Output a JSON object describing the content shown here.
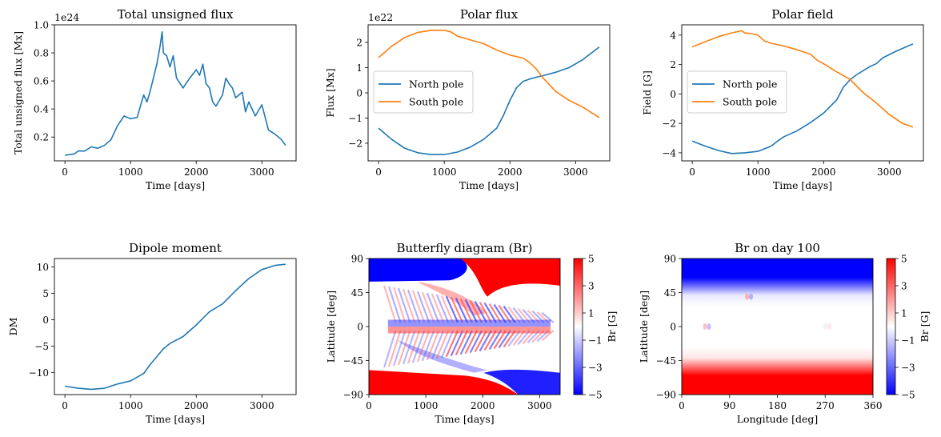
{
  "chart_data": [
    {
      "id": "flux",
      "type": "line",
      "title": "Total unsigned flux",
      "xlabel": "Time [days]",
      "ylabel": "Total unsigned flux [Mx]",
      "offset_label": "1e24",
      "xlim": [
        -160,
        3520
      ],
      "ylim": [
        0.03,
        1.0
      ],
      "xticks": [
        0,
        1000,
        2000,
        3000
      ],
      "yticks": [
        0.2,
        0.4,
        0.6,
        0.8,
        1.0
      ],
      "xticklabels": [
        "0",
        "1000",
        "2000",
        "3000"
      ],
      "yticklabels": [
        "0.2",
        "0.4",
        "0.6",
        "0.8",
        "1.0"
      ],
      "series": [
        {
          "name": "Total unsigned flux",
          "color": "#1f77b4",
          "x": [
            0,
            150,
            200,
            300,
            400,
            500,
            600,
            700,
            800,
            900,
            1000,
            1100,
            1200,
            1250,
            1300,
            1400,
            1450,
            1480,
            1500,
            1550,
            1600,
            1650,
            1700,
            1800,
            1900,
            2000,
            2050,
            2100,
            2150,
            2200,
            2250,
            2300,
            2400,
            2450,
            2500,
            2550,
            2600,
            2700,
            2750,
            2800,
            2900,
            3000,
            3100,
            3200,
            3300,
            3360
          ],
          "values": [
            0.07,
            0.08,
            0.1,
            0.1,
            0.13,
            0.12,
            0.14,
            0.18,
            0.28,
            0.35,
            0.33,
            0.34,
            0.5,
            0.45,
            0.53,
            0.72,
            0.85,
            0.95,
            0.8,
            0.78,
            0.7,
            0.78,
            0.62,
            0.55,
            0.62,
            0.68,
            0.64,
            0.72,
            0.58,
            0.55,
            0.45,
            0.42,
            0.5,
            0.62,
            0.58,
            0.55,
            0.48,
            0.52,
            0.38,
            0.45,
            0.35,
            0.43,
            0.25,
            0.22,
            0.18,
            0.14
          ]
        }
      ]
    },
    {
      "id": "polarflux",
      "type": "line",
      "title": "Polar flux",
      "xlabel": "Time [days]",
      "ylabel": "Flux [Mx]",
      "offset_label": "1e22",
      "xlim": [
        -160,
        3520
      ],
      "ylim": [
        -2.7,
        2.7
      ],
      "xticks": [
        0,
        1000,
        2000,
        3000
      ],
      "yticks": [
        -2,
        -1,
        0,
        1,
        2
      ],
      "xticklabels": [
        "0",
        "1000",
        "2000",
        "3000"
      ],
      "yticklabels": [
        "−2",
        "−1",
        "0",
        "1",
        "2"
      ],
      "legend": "center-left",
      "series": [
        {
          "name": "North pole",
          "color": "#1f77b4",
          "x": [
            0,
            200,
            400,
            600,
            800,
            1000,
            1200,
            1400,
            1600,
            1800,
            1900,
            2000,
            2100,
            2200,
            2300,
            2400,
            2500,
            2700,
            2900,
            3100,
            3360
          ],
          "values": [
            -1.4,
            -1.85,
            -2.2,
            -2.38,
            -2.45,
            -2.45,
            -2.35,
            -2.15,
            -1.85,
            -1.4,
            -0.9,
            -0.3,
            0.2,
            0.45,
            0.55,
            0.62,
            0.68,
            0.82,
            1.0,
            1.3,
            1.82
          ]
        },
        {
          "name": "South pole",
          "color": "#ff7f0e",
          "x": [
            0,
            200,
            400,
            600,
            800,
            1000,
            1100,
            1200,
            1400,
            1600,
            1800,
            2000,
            2200,
            2300,
            2400,
            2500,
            2700,
            2900,
            3100,
            3360
          ],
          "values": [
            1.4,
            1.85,
            2.2,
            2.4,
            2.48,
            2.48,
            2.42,
            2.25,
            2.1,
            1.95,
            1.7,
            1.5,
            1.38,
            1.2,
            0.95,
            0.6,
            0.05,
            -0.3,
            -0.55,
            -0.98
          ]
        }
      ]
    },
    {
      "id": "polarfield",
      "type": "line",
      "title": "Polar field",
      "xlabel": "Time [days]",
      "ylabel": "Field [G]",
      "xlim": [
        -160,
        3520
      ],
      "ylim": [
        -4.55,
        4.7
      ],
      "xticks": [
        0,
        1000,
        2000,
        3000
      ],
      "yticks": [
        -4,
        -2,
        0,
        2,
        4
      ],
      "xticklabels": [
        "0",
        "1000",
        "2000",
        "3000"
      ],
      "yticklabels": [
        "−4",
        "−2",
        "0",
        "2",
        "4"
      ],
      "legend": "center-left",
      "series": [
        {
          "name": "North pole",
          "color": "#1f77b4",
          "x": [
            0,
            200,
            400,
            600,
            800,
            1000,
            1200,
            1300,
            1400,
            1600,
            1800,
            2000,
            2200,
            2300,
            2400,
            2500,
            2700,
            2800,
            2900,
            3100,
            3360
          ],
          "values": [
            -3.2,
            -3.55,
            -3.85,
            -4.05,
            -4.0,
            -3.9,
            -3.55,
            -3.2,
            -2.9,
            -2.5,
            -1.95,
            -1.3,
            -0.4,
            0.45,
            0.95,
            1.3,
            1.85,
            2.05,
            2.45,
            2.9,
            3.4
          ]
        },
        {
          "name": "South pole",
          "color": "#ff7f0e",
          "x": [
            0,
            200,
            400,
            600,
            750,
            800,
            900,
            1000,
            1100,
            1200,
            1400,
            1600,
            1800,
            1900,
            2000,
            2200,
            2400,
            2600,
            2800,
            3000,
            3200,
            3360
          ],
          "values": [
            3.2,
            3.55,
            3.9,
            4.15,
            4.3,
            4.15,
            4.1,
            4.0,
            3.6,
            3.45,
            3.25,
            3.0,
            2.7,
            2.3,
            2.05,
            1.5,
            1.0,
            0.1,
            -0.6,
            -1.4,
            -2.0,
            -2.25
          ]
        }
      ]
    },
    {
      "id": "dipole",
      "type": "line",
      "title": "Dipole moment",
      "xlabel": "Time [days]",
      "ylabel": "DM",
      "xlim": [
        -160,
        3520
      ],
      "ylim": [
        -14.2,
        11.6
      ],
      "xticks": [
        0,
        1000,
        2000,
        3000
      ],
      "yticks": [
        -10,
        -5,
        0,
        5,
        10
      ],
      "xticklabels": [
        "0",
        "1000",
        "2000",
        "3000"
      ],
      "yticklabels": [
        "−10",
        "−5",
        "0",
        "5",
        "10"
      ],
      "series": [
        {
          "name": "Dipole moment",
          "color": "#1f77b4",
          "x": [
            0,
            200,
            400,
            600,
            800,
            1000,
            1200,
            1300,
            1400,
            1500,
            1600,
            1800,
            2000,
            2200,
            2400,
            2600,
            2800,
            3000,
            3200,
            3360
          ],
          "values": [
            -12.6,
            -13.0,
            -13.2,
            -13.0,
            -12.2,
            -11.6,
            -10.2,
            -8.5,
            -7.0,
            -5.5,
            -4.5,
            -3.2,
            -1.0,
            1.5,
            3.0,
            5.5,
            7.8,
            9.5,
            10.3,
            10.5
          ]
        }
      ]
    },
    {
      "id": "butterfly",
      "type": "heatmap",
      "title": "Butterfly diagram (Br)",
      "xlabel": "Time [days]",
      "ylabel": "Latitude [deg]",
      "xlim": [
        0,
        3360
      ],
      "ylim": [
        -90,
        90
      ],
      "xticks": [
        0,
        1000,
        2000,
        3000
      ],
      "yticks": [
        -90,
        -45,
        0,
        45,
        90
      ],
      "xticklabels": [
        "0",
        "1000",
        "2000",
        "3000"
      ],
      "yticklabels": [
        "−90",
        "−45",
        "0",
        "45",
        "90"
      ],
      "colorbar": {
        "label": "Br [G]",
        "range": [
          -5,
          5
        ],
        "ticks": [
          -5,
          -3,
          -1,
          1,
          3,
          5
        ],
        "ticklabels": [
          "−5",
          "−3",
          "−1",
          "1",
          "3",
          "5"
        ],
        "colormap": "bwr"
      }
    },
    {
      "id": "brday",
      "type": "heatmap",
      "title": "Br on day 100",
      "xlabel": "Longitude [deg]",
      "ylabel": "Latitude [deg]",
      "xlim": [
        0,
        360
      ],
      "ylim": [
        -90,
        90
      ],
      "xticks": [
        0,
        90,
        180,
        270,
        360
      ],
      "yticks": [
        -90,
        -45,
        0,
        45,
        90
      ],
      "xticklabels": [
        "0",
        "90",
        "180",
        "270",
        "360"
      ],
      "yticklabels": [
        "−90",
        "−45",
        "0",
        "45",
        "90"
      ],
      "colorbar": {
        "label": "Br [G]",
        "range": [
          -5,
          5
        ],
        "ticks": [
          -5,
          -3,
          -1,
          1,
          3,
          5
        ],
        "ticklabels": [
          "−5",
          "−3",
          "−1",
          "1",
          "3",
          "5"
        ],
        "colormap": "bwr"
      }
    }
  ]
}
